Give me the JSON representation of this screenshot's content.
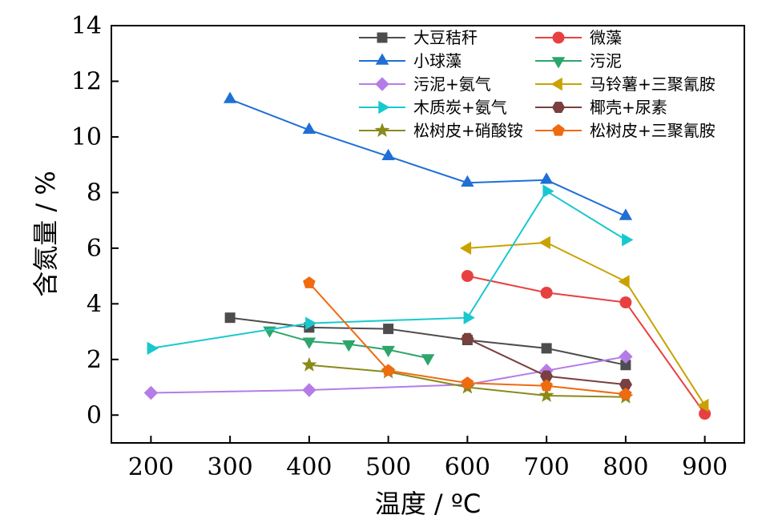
{
  "chart_data": {
    "type": "line",
    "xlabel": "温度 / ºC",
    "ylabel": "含氮量 / %",
    "xlim": [
      150,
      950
    ],
    "ylim": [
      -1,
      14
    ],
    "xticks": [
      200,
      300,
      400,
      500,
      600,
      700,
      800,
      900
    ],
    "yticks": [
      0,
      2,
      4,
      6,
      8,
      10,
      12,
      14
    ],
    "grid": false,
    "legend_position": "top-right",
    "series": [
      {
        "name": "大豆秸秆",
        "color": "#4d4d4d",
        "marker": "square",
        "x": [
          300,
          400,
          500,
          600,
          700,
          800
        ],
        "y": [
          3.5,
          3.15,
          3.1,
          2.7,
          2.4,
          1.8
        ]
      },
      {
        "name": "微藻",
        "color": "#e84040",
        "marker": "circle",
        "x": [
          600,
          700,
          800,
          900
        ],
        "y": [
          5.0,
          4.4,
          4.05,
          0.05
        ]
      },
      {
        "name": "小球藻",
        "color": "#1f6fd6",
        "marker": "triangle-up",
        "x": [
          300,
          400,
          500,
          600,
          700,
          800
        ],
        "y": [
          11.35,
          10.25,
          9.3,
          8.35,
          8.45,
          7.15
        ]
      },
      {
        "name": "污泥",
        "color": "#2ea56b",
        "marker": "triangle-down",
        "x": [
          350,
          400,
          450,
          500,
          550
        ],
        "y": [
          3.05,
          2.65,
          2.55,
          2.35,
          2.05
        ]
      },
      {
        "name": "污泥+氨气",
        "color": "#b57ce8",
        "marker": "diamond",
        "x": [
          200,
          400,
          600,
          700,
          800
        ],
        "y": [
          0.8,
          0.9,
          1.1,
          1.6,
          2.1
        ]
      },
      {
        "name": "马铃薯+三聚氰胺",
        "color": "#c9a200",
        "marker": "triangle-left",
        "x": [
          600,
          700,
          800,
          900
        ],
        "y": [
          6.0,
          6.2,
          4.8,
          0.35
        ]
      },
      {
        "name": "木质炭+氨气",
        "color": "#18c8cf",
        "marker": "triangle-right",
        "x": [
          200,
          400,
          600,
          700,
          800
        ],
        "y": [
          2.4,
          3.3,
          3.5,
          8.05,
          6.3
        ]
      },
      {
        "name": "椰壳+尿素",
        "color": "#7a3f3f",
        "marker": "hexagon",
        "x": [
          600,
          700,
          800
        ],
        "y": [
          2.75,
          1.4,
          1.1
        ]
      },
      {
        "name": "松树皮+硝酸铵",
        "color": "#8a8a1a",
        "marker": "star",
        "x": [
          400,
          500,
          600,
          700,
          800
        ],
        "y": [
          1.8,
          1.55,
          1.0,
          0.7,
          0.65
        ]
      },
      {
        "name": "松树皮+三聚氰胺",
        "color": "#f06a10",
        "marker": "pentagon",
        "x": [
          400,
          500,
          600,
          700,
          800
        ],
        "y": [
          4.75,
          1.6,
          1.15,
          1.05,
          0.75
        ]
      }
    ]
  }
}
